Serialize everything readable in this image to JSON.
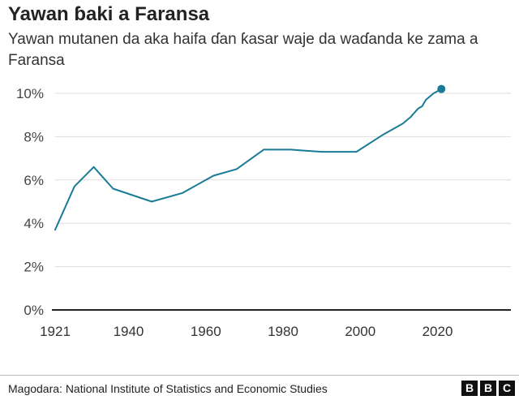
{
  "header": {
    "title": "Yawan ɓaki a Faransa",
    "subtitle": "Yawan mutanen da aka haifa ɗan ƙasar waje da waɗanda ke zama a Faransa"
  },
  "footer": {
    "source": "Magodara: National Institute of Statistics and Economic Studies",
    "logo_letters": [
      "B",
      "B",
      "C"
    ]
  },
  "chart_data": {
    "type": "line",
    "title": "Yawan ɓaki a Faransa",
    "xlabel": "",
    "ylabel": "",
    "xlim": [
      1921,
      2039
    ],
    "ylim": [
      0,
      10
    ],
    "x_ticks": [
      1921,
      1940,
      1960,
      1980,
      2000,
      2020
    ],
    "y_ticks": [
      0,
      2,
      4,
      6,
      8,
      10
    ],
    "y_tick_labels": [
      "0%",
      "2%",
      "4%",
      "6%",
      "8%",
      "10%"
    ],
    "grid": true,
    "legend": "none",
    "line_color": "#1a7b96",
    "grid_color": "#dddddd",
    "series": [
      {
        "values": [
          [
            1921,
            3.7
          ],
          [
            1926,
            5.7
          ],
          [
            1931,
            6.6
          ],
          [
            1936,
            5.6
          ],
          [
            1946,
            5.0
          ],
          [
            1954,
            5.4
          ],
          [
            1962,
            6.2
          ],
          [
            1968,
            6.5
          ],
          [
            1975,
            7.4
          ],
          [
            1982,
            7.4
          ],
          [
            1990,
            7.3
          ],
          [
            1999,
            7.3
          ],
          [
            2006,
            8.1
          ],
          [
            2011,
            8.6
          ],
          [
            2013,
            8.9
          ],
          [
            2015,
            9.3
          ],
          [
            2016,
            9.4
          ],
          [
            2017,
            9.7
          ],
          [
            2019,
            10.0
          ],
          [
            2021,
            10.2
          ]
        ],
        "end_marker": true
      }
    ]
  }
}
